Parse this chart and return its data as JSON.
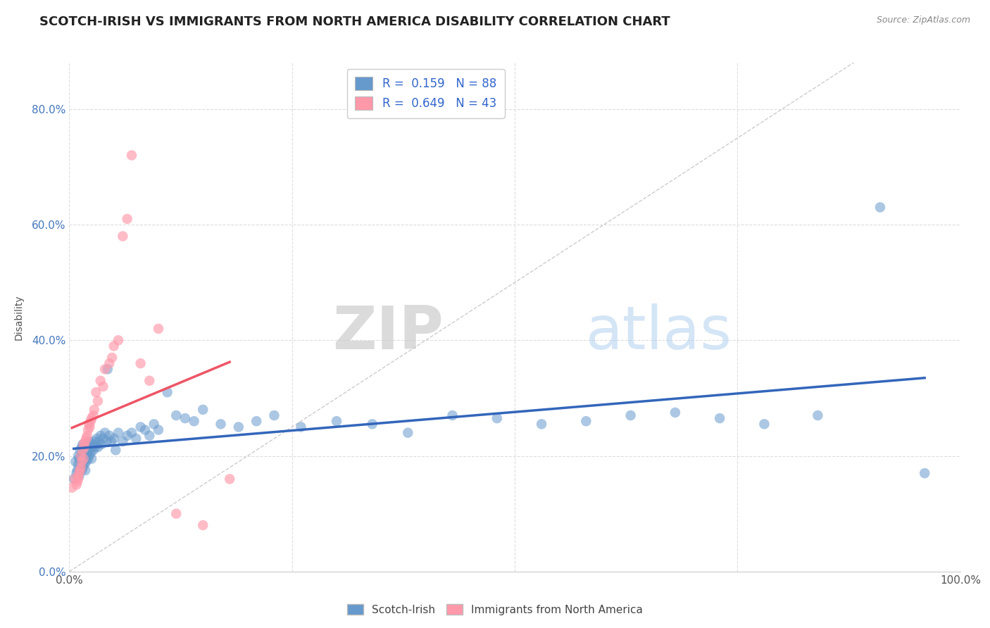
{
  "title": "SCOTCH-IRISH VS IMMIGRANTS FROM NORTH AMERICA DISABILITY CORRELATION CHART",
  "source_text": "Source: ZipAtlas.com",
  "ylabel": "Disability",
  "xlim": [
    0.0,
    1.0
  ],
  "ylim": [
    0.0,
    0.88
  ],
  "yticks": [
    0.0,
    0.2,
    0.4,
    0.6,
    0.8
  ],
  "xticks": [
    0.0,
    0.25,
    0.5,
    0.75,
    1.0
  ],
  "xtick_labels_visible": [
    "0.0%",
    "100.0%"
  ],
  "xtick_visible_pos": [
    0.0,
    1.0
  ],
  "ytick_labels": [
    "0.0%",
    "20.0%",
    "40.0%",
    "60.0%",
    "80.0%"
  ],
  "series1_color": "#6699CC",
  "series2_color": "#FF99AA",
  "series1_label": "Scotch-Irish",
  "series2_label": "Immigrants from North America",
  "series1_R": 0.159,
  "series1_N": 88,
  "series2_R": 0.649,
  "series2_N": 43,
  "trend1_color": "#3366BB",
  "trend2_color": "#EE5566",
  "ref_line_color": "#CCCCCC",
  "legend_R_color": "#3366CC",
  "background_color": "#FFFFFF",
  "grid_color": "#DDDDDD",
  "title_fontsize": 13,
  "axis_label_fontsize": 10,
  "tick_fontsize": 11,
  "watermark_zip": "ZIP",
  "watermark_atlas": "atlas",
  "series1_x": [
    0.005,
    0.007,
    0.008,
    0.009,
    0.01,
    0.01,
    0.011,
    0.011,
    0.012,
    0.012,
    0.013,
    0.013,
    0.014,
    0.014,
    0.015,
    0.015,
    0.015,
    0.016,
    0.016,
    0.017,
    0.017,
    0.018,
    0.018,
    0.018,
    0.019,
    0.019,
    0.02,
    0.02,
    0.021,
    0.021,
    0.022,
    0.022,
    0.023,
    0.024,
    0.025,
    0.025,
    0.026,
    0.027,
    0.028,
    0.029,
    0.03,
    0.031,
    0.032,
    0.033,
    0.035,
    0.036,
    0.038,
    0.04,
    0.042,
    0.043,
    0.045,
    0.047,
    0.05,
    0.052,
    0.055,
    0.06,
    0.065,
    0.07,
    0.075,
    0.08,
    0.085,
    0.09,
    0.095,
    0.1,
    0.11,
    0.12,
    0.13,
    0.14,
    0.15,
    0.17,
    0.19,
    0.21,
    0.23,
    0.26,
    0.3,
    0.34,
    0.38,
    0.43,
    0.48,
    0.53,
    0.58,
    0.63,
    0.68,
    0.73,
    0.78,
    0.84,
    0.91,
    0.96
  ],
  "series1_y": [
    0.16,
    0.19,
    0.17,
    0.175,
    0.185,
    0.2,
    0.165,
    0.195,
    0.175,
    0.21,
    0.185,
    0.2,
    0.175,
    0.215,
    0.18,
    0.195,
    0.22,
    0.19,
    0.21,
    0.185,
    0.205,
    0.195,
    0.175,
    0.215,
    0.19,
    0.205,
    0.2,
    0.22,
    0.195,
    0.215,
    0.2,
    0.225,
    0.21,
    0.205,
    0.195,
    0.22,
    0.215,
    0.21,
    0.225,
    0.215,
    0.22,
    0.23,
    0.215,
    0.225,
    0.235,
    0.22,
    0.23,
    0.24,
    0.225,
    0.35,
    0.235,
    0.225,
    0.23,
    0.21,
    0.24,
    0.225,
    0.235,
    0.24,
    0.23,
    0.25,
    0.245,
    0.235,
    0.255,
    0.245,
    0.31,
    0.27,
    0.265,
    0.26,
    0.28,
    0.255,
    0.25,
    0.26,
    0.27,
    0.25,
    0.26,
    0.255,
    0.24,
    0.27,
    0.265,
    0.255,
    0.26,
    0.27,
    0.275,
    0.265,
    0.255,
    0.27,
    0.63,
    0.17
  ],
  "series2_x": [
    0.003,
    0.006,
    0.008,
    0.009,
    0.01,
    0.01,
    0.011,
    0.012,
    0.013,
    0.013,
    0.014,
    0.015,
    0.016,
    0.016,
    0.017,
    0.018,
    0.019,
    0.02,
    0.021,
    0.022,
    0.023,
    0.024,
    0.025,
    0.027,
    0.028,
    0.03,
    0.032,
    0.035,
    0.038,
    0.04,
    0.045,
    0.048,
    0.05,
    0.055,
    0.06,
    0.065,
    0.07,
    0.08,
    0.09,
    0.1,
    0.12,
    0.15,
    0.18
  ],
  "series2_y": [
    0.145,
    0.16,
    0.15,
    0.155,
    0.16,
    0.165,
    0.17,
    0.175,
    0.18,
    0.2,
    0.19,
    0.21,
    0.195,
    0.22,
    0.215,
    0.225,
    0.23,
    0.235,
    0.245,
    0.255,
    0.25,
    0.26,
    0.265,
    0.27,
    0.28,
    0.31,
    0.295,
    0.33,
    0.32,
    0.35,
    0.36,
    0.37,
    0.39,
    0.4,
    0.58,
    0.61,
    0.72,
    0.36,
    0.33,
    0.42,
    0.1,
    0.08,
    0.16
  ]
}
